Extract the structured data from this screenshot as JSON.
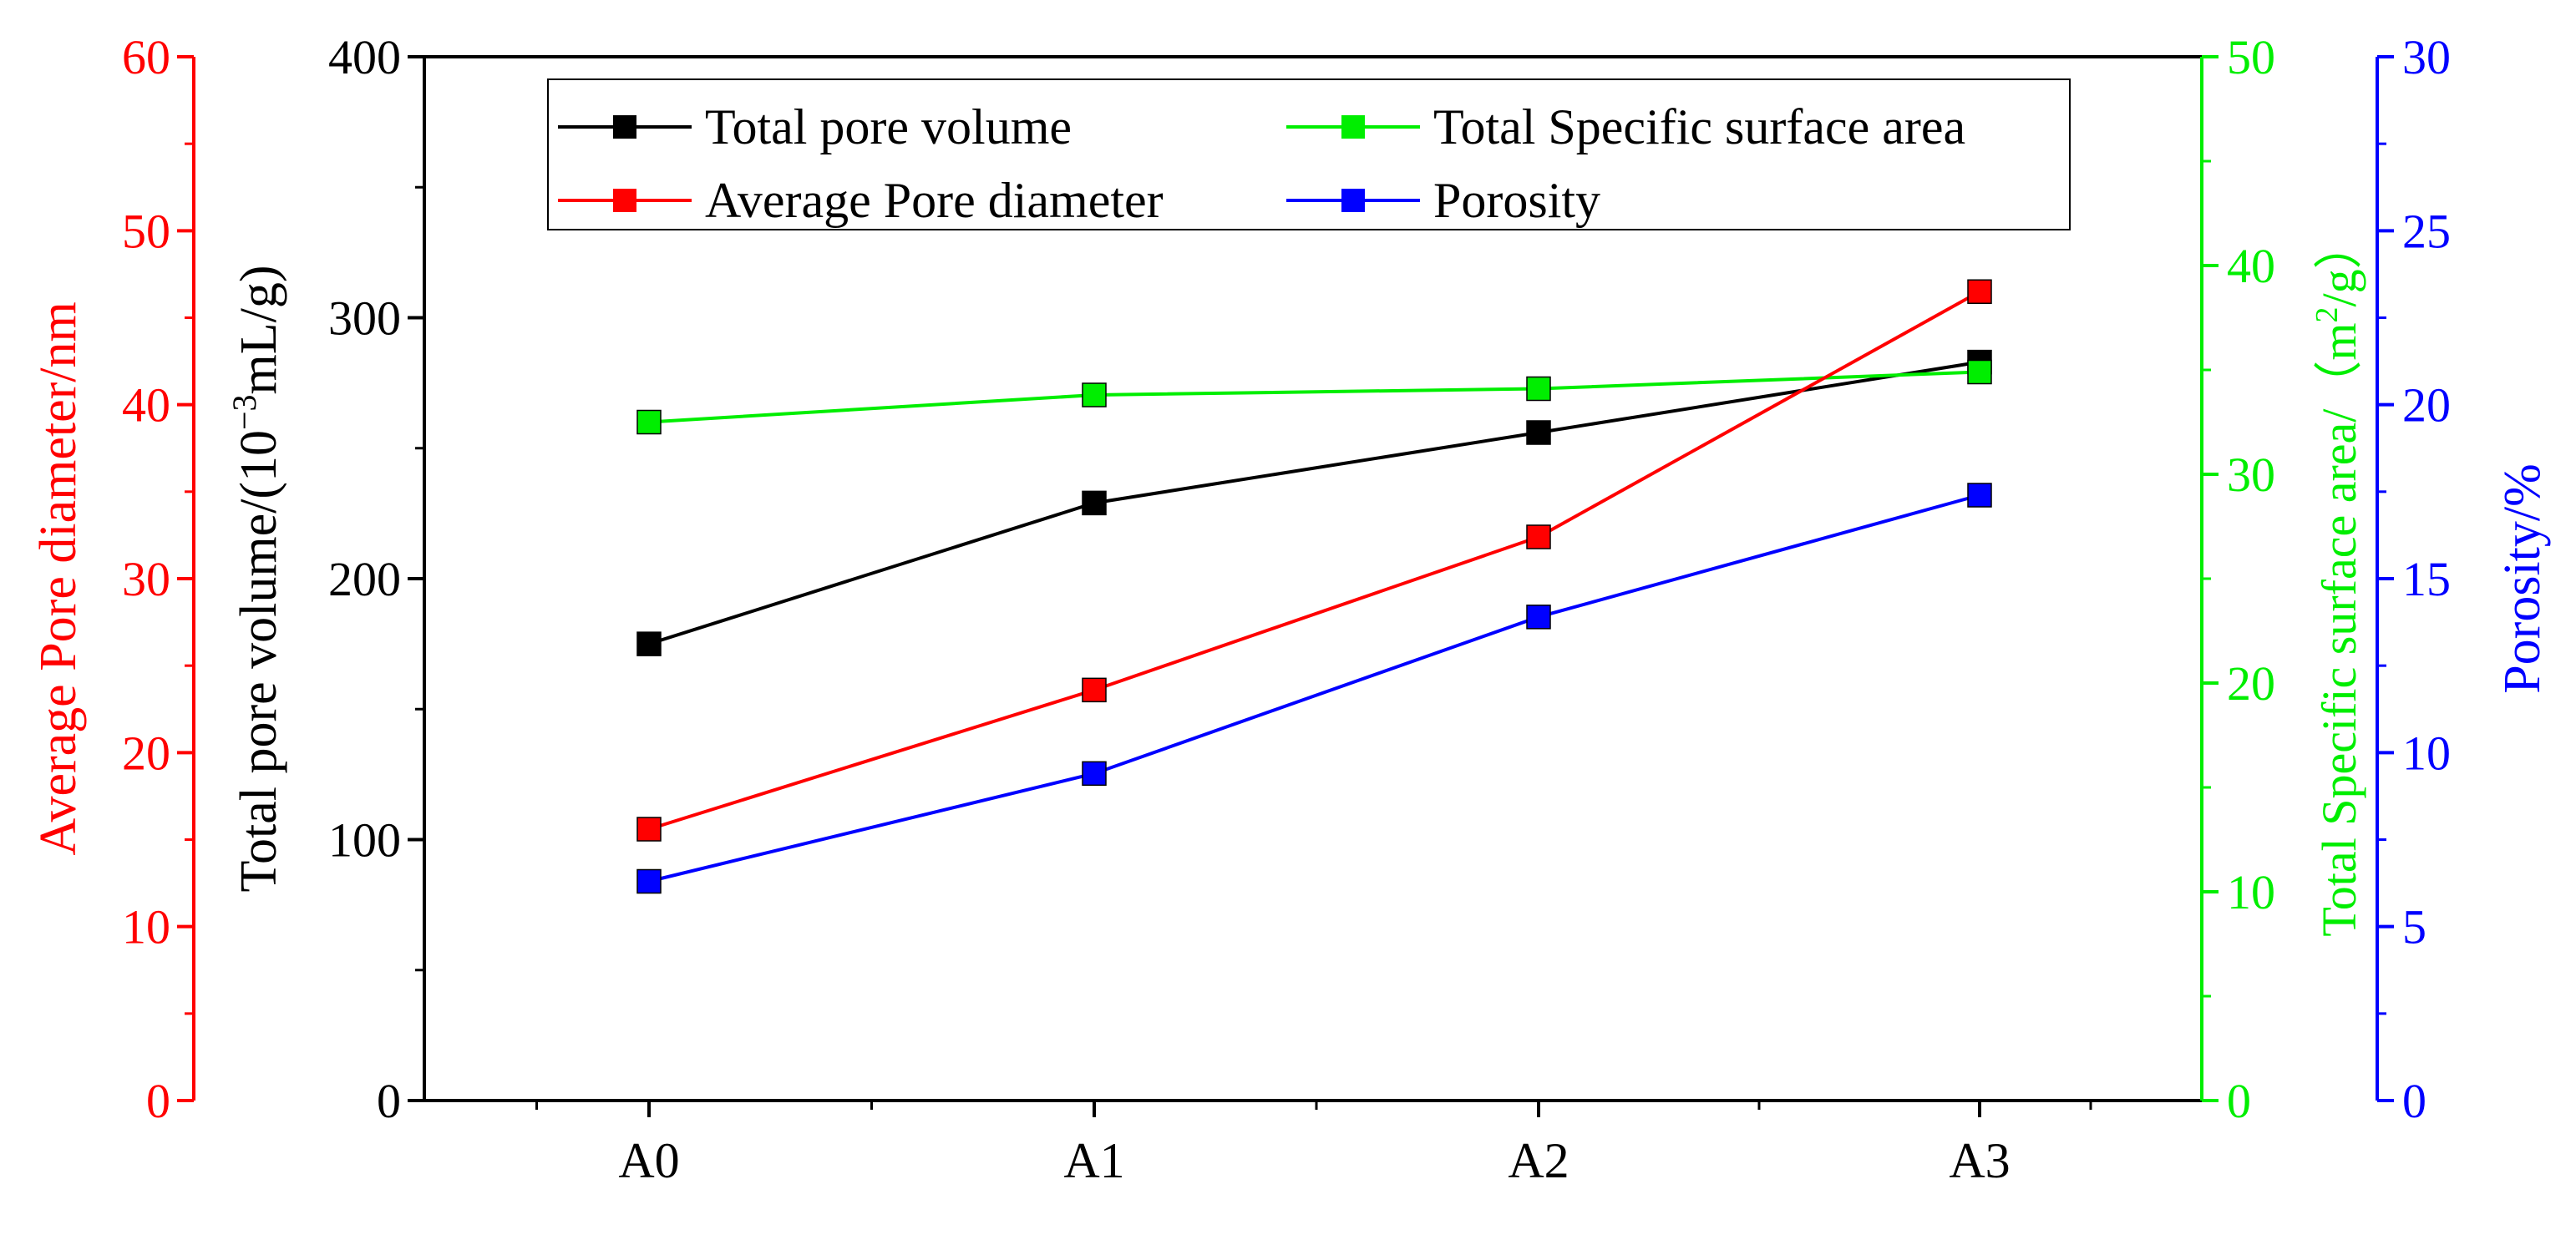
{
  "chart_data": {
    "type": "line",
    "categories": [
      "A0",
      "A1",
      "A2",
      "A3"
    ],
    "axes": {
      "left_outer": {
        "label": "Average Pore diameter/nm",
        "range": [
          0,
          60
        ],
        "ticks": [
          "0",
          "10",
          "20",
          "30",
          "40",
          "50",
          "60"
        ],
        "color": "#ff0000"
      },
      "left_inner": {
        "label_prefix": "Total pore volume/(10",
        "label_sup": "−3",
        "label_suffix": "mL/g)",
        "range": [
          0,
          400
        ],
        "ticks": [
          "0",
          "100",
          "200",
          "300",
          "400"
        ],
        "color": "#000000"
      },
      "right_inner": {
        "label_prefix": "Total Specific surface area/（m",
        "label_sup": "2",
        "label_suffix": "/g）",
        "range": [
          0,
          50
        ],
        "ticks": [
          "0",
          "10",
          "20",
          "30",
          "40",
          "50"
        ],
        "color": "#00ee00"
      },
      "right_outer": {
        "label": "Porosity/%",
        "range": [
          0,
          30
        ],
        "ticks": [
          "0",
          "5",
          "10",
          "15",
          "20",
          "25",
          "30"
        ],
        "color": "#0000ff"
      }
    },
    "series": [
      {
        "name": "Total pore volume",
        "axis": "left_inner",
        "color": "#000000",
        "values": [
          175,
          229,
          256,
          283
        ]
      },
      {
        "name": "Total Specific surface area",
        "axis": "right_inner",
        "color": "#00ee00",
        "values": [
          32.5,
          33.8,
          34.1,
          34.9
        ]
      },
      {
        "name": "Average Pore diameter",
        "axis": "left_outer",
        "color": "#ff0000",
        "values": [
          15.6,
          23.6,
          32.4,
          46.5
        ]
      },
      {
        "name": "Porosity",
        "axis": "right_outer",
        "color": "#0000ff",
        "values": [
          6.3,
          9.4,
          13.9,
          17.4
        ]
      }
    ],
    "legend": {
      "position": "top-center",
      "entries": [
        "Total pore volume",
        "Total Specific surface area",
        "Average Pore diameter",
        "Porosity"
      ]
    }
  }
}
